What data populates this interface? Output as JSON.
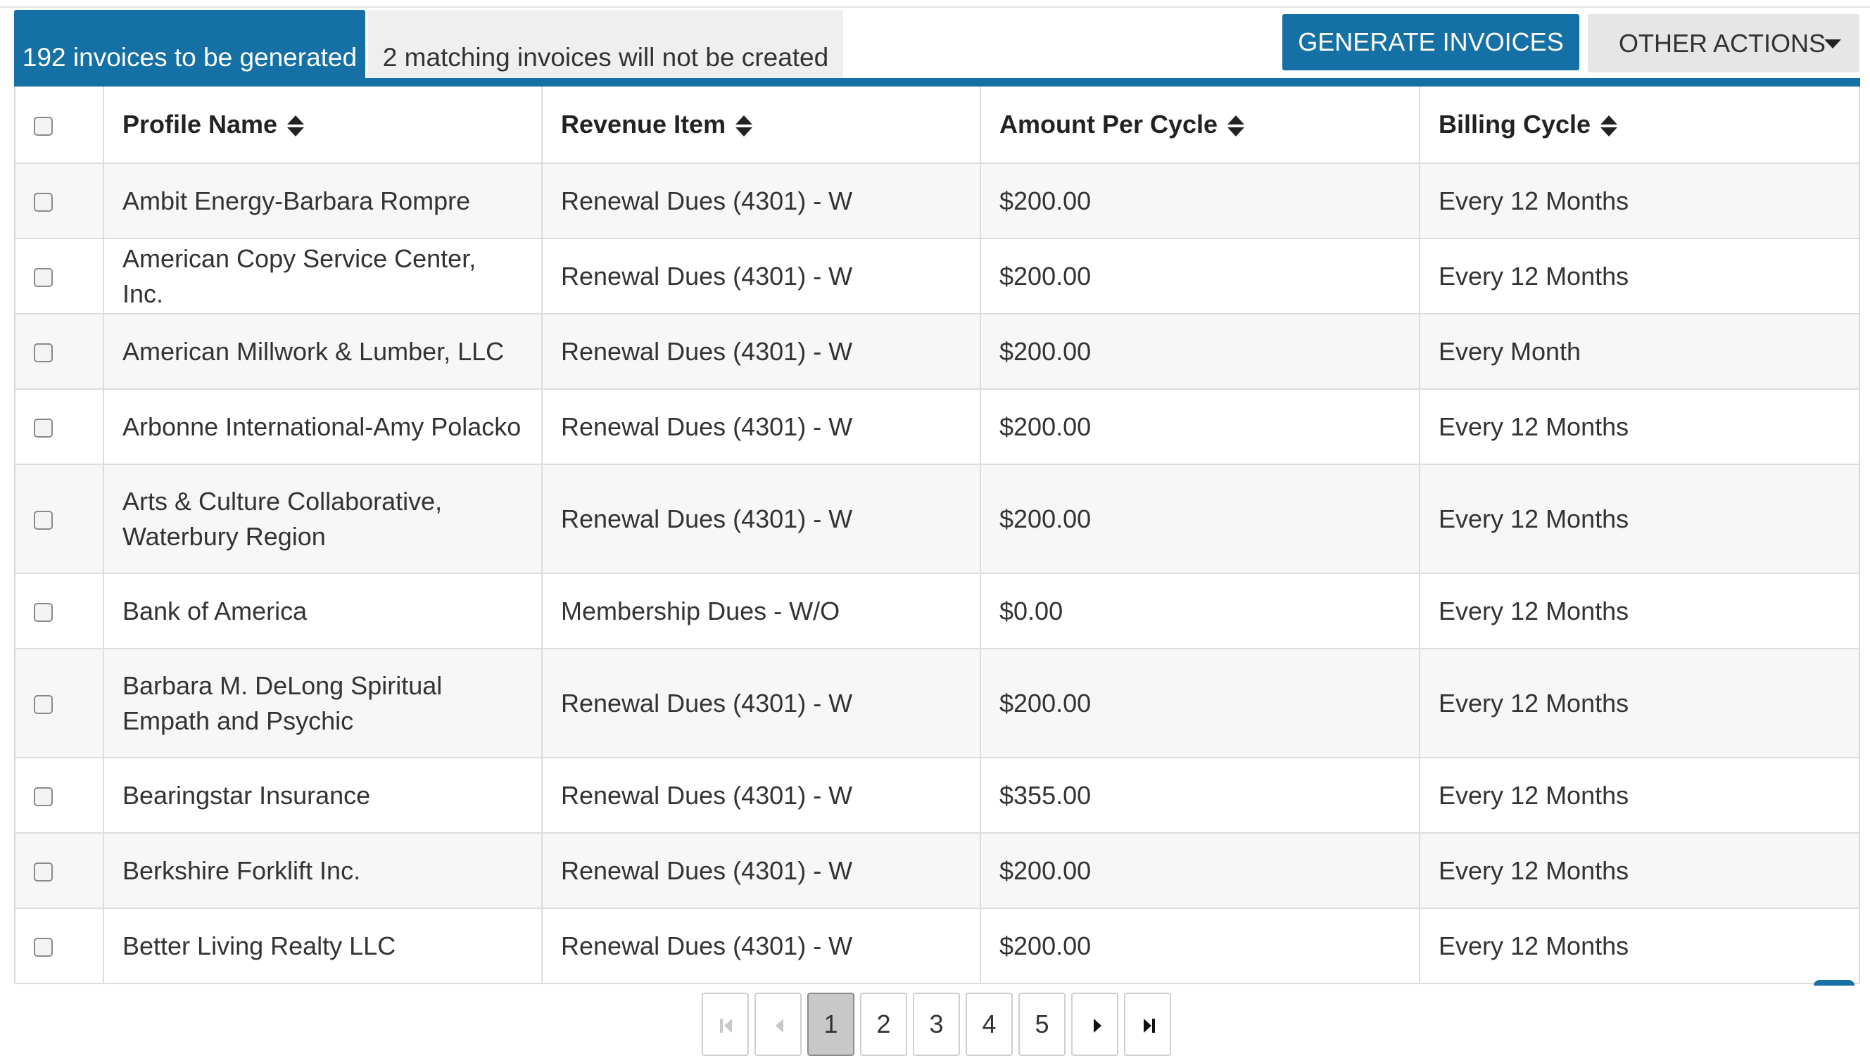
{
  "tabs": {
    "active_label": "192 invoices to be generated",
    "inactive_label": "2 matching invoices will not be created"
  },
  "toolbar": {
    "generate_label": "GENERATE INVOICES →",
    "other_actions_label": "OTHER ACTIONS"
  },
  "table": {
    "columns": [
      "Profile Name",
      "Revenue Item",
      "Amount Per Cycle",
      "Billing Cycle"
    ],
    "rows": [
      {
        "profile": "Ambit Energy-Barbara Rompre",
        "revenue": "Renewal Dues (4301) - W",
        "amount": "$200.00",
        "cycle": "Every 12 Months"
      },
      {
        "profile": "American Copy Service Center, Inc.",
        "revenue": "Renewal Dues (4301) - W",
        "amount": "$200.00",
        "cycle": "Every 12 Months"
      },
      {
        "profile": "American Millwork & Lumber, LLC",
        "revenue": "Renewal Dues (4301) - W",
        "amount": "$200.00",
        "cycle": "Every Month"
      },
      {
        "profile": "Arbonne International-Amy Polacko",
        "revenue": "Renewal Dues (4301) - W",
        "amount": "$200.00",
        "cycle": "Every 12 Months"
      },
      {
        "profile": "Arts & Culture Collaborative, Waterbury Region",
        "revenue": "Renewal Dues (4301) - W",
        "amount": "$200.00",
        "cycle": "Every 12 Months"
      },
      {
        "profile": "Bank of America",
        "revenue": "Membership Dues - W/O",
        "amount": "$0.00",
        "cycle": "Every 12 Months"
      },
      {
        "profile": "Barbara M. DeLong Spiritual Empath and Psychic",
        "revenue": "Renewal Dues (4301) - W",
        "amount": "$200.00",
        "cycle": "Every 12 Months"
      },
      {
        "profile": "Bearingstar Insurance",
        "revenue": "Renewal Dues (4301) - W",
        "amount": "$355.00",
        "cycle": "Every 12 Months"
      },
      {
        "profile": "Berkshire Forklift Inc.",
        "revenue": "Renewal Dues (4301) - W",
        "amount": "$200.00",
        "cycle": "Every 12 Months"
      },
      {
        "profile": "Better Living Realty LLC",
        "revenue": "Renewal Dues (4301) - W",
        "amount": "$200.00",
        "cycle": "Every 12 Months"
      }
    ]
  },
  "pagination": {
    "pages": [
      "1",
      "2",
      "3",
      "4",
      "5"
    ],
    "current": "1"
  },
  "colors": {
    "accent": "#1570a6",
    "row_alt": "#f7f7f7",
    "button_secondary": "#e6e6e6"
  },
  "icons": {
    "sort": "sort-icon",
    "dropdown": "caret-down-icon",
    "first": "first-page-icon",
    "prev": "prev-page-icon",
    "next": "next-page-icon",
    "last": "last-page-icon"
  }
}
